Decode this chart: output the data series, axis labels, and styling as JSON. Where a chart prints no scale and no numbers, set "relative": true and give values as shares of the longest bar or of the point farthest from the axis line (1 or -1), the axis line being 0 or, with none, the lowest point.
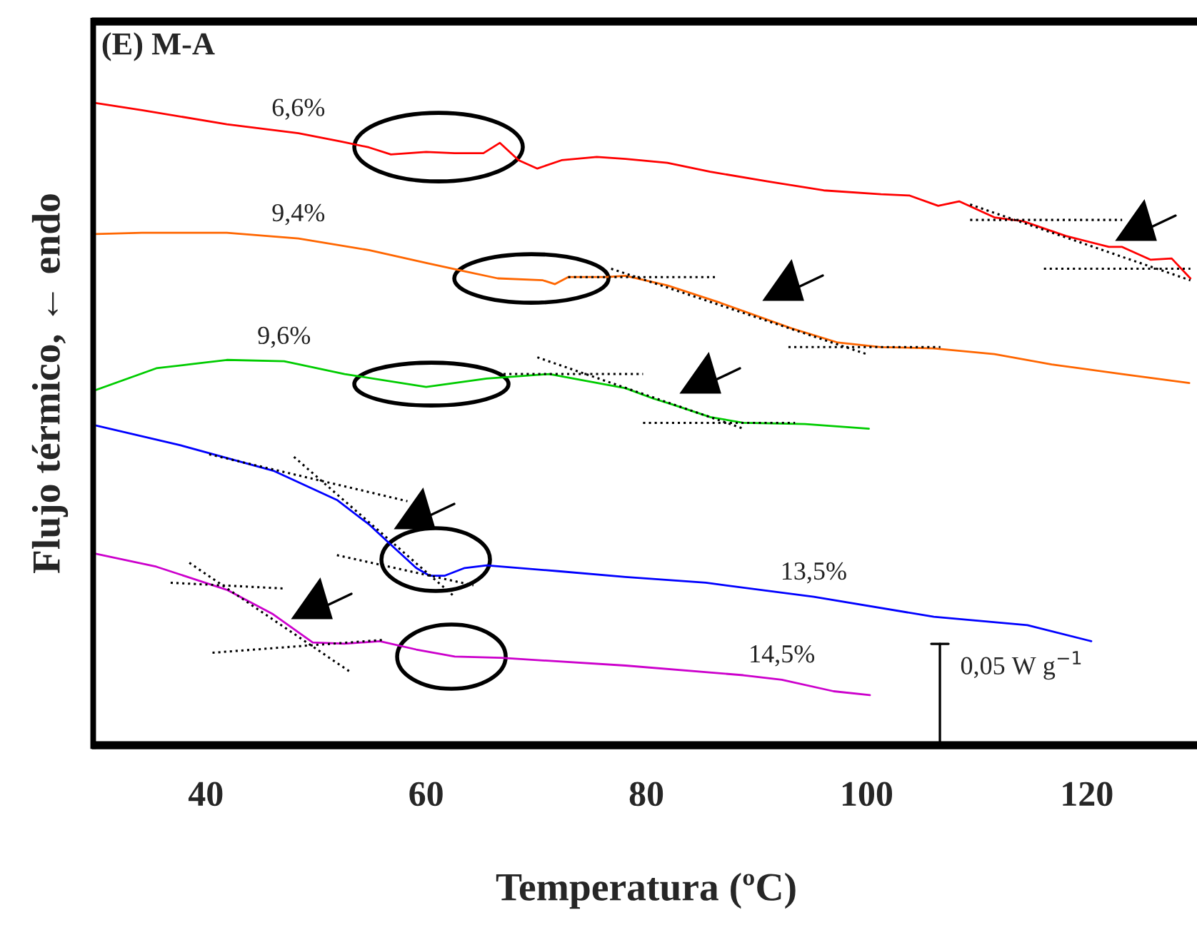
{
  "chart_data": {
    "type": "line",
    "relative": true,
    "xlabel": "Temperatura (ºC)",
    "ylabel": "Flujo térmico, ← endo",
    "xlim": [
      30,
      130
    ],
    "xticks": [
      40,
      60,
      80,
      100,
      120
    ],
    "grid": false,
    "legend": false,
    "marker": "none",
    "line_style": "solid",
    "annotations": [
      "(E) M-A",
      "0,05 W g$^{−1}$"
    ],
    "series": [
      {
        "name": "6,6%",
        "color": "#ff0000",
        "x": [
          30,
          34.2,
          41.9,
          48.4,
          52.3,
          54.8,
          56.8,
          60.0,
          62.6,
          65.2,
          66.7,
          68.4,
          70.1,
          72.3,
          75.5,
          78.1,
          81.9,
          85.8,
          91.0,
          96.1,
          101.3,
          103.9,
          106.5,
          108.4,
          111.6,
          114.2,
          118.1,
          122.0,
          123.2,
          125.8,
          127.7,
          129.4
        ],
        "values": [
          1.0,
          0.989,
          0.967,
          0.953,
          0.94,
          0.931,
          0.92,
          0.924,
          0.922,
          0.922,
          0.938,
          0.911,
          0.898,
          0.911,
          0.916,
          0.913,
          0.907,
          0.893,
          0.878,
          0.864,
          0.858,
          0.856,
          0.84,
          0.847,
          0.822,
          0.816,
          0.793,
          0.776,
          0.776,
          0.756,
          0.758,
          0.727
        ]
      },
      {
        "name": "9,4%",
        "color": "#ff6600",
        "x": [
          30,
          34.2,
          41.9,
          48.4,
          54.8,
          60.0,
          63.5,
          66.5,
          70.6,
          71.7,
          72.9,
          76.4,
          78.1,
          81.9,
          86.7,
          93.2,
          97.4,
          101.3,
          106.1,
          111.6,
          116.8,
          123.2,
          129.3
        ],
        "values": [
          0.796,
          0.798,
          0.798,
          0.789,
          0.771,
          0.751,
          0.738,
          0.727,
          0.724,
          0.718,
          0.729,
          0.729,
          0.731,
          0.716,
          0.689,
          0.649,
          0.627,
          0.62,
          0.618,
          0.609,
          0.593,
          0.578,
          0.564
        ]
      },
      {
        "name": "9,6%",
        "color": "#00cc00",
        "x": [
          30,
          35.5,
          41.9,
          47.1,
          52.6,
          60.0,
          65.5,
          71.2,
          74.6,
          78.1,
          80.6,
          82.3,
          85.8,
          88.8,
          94.4,
          100.2
        ],
        "values": [
          0.553,
          0.587,
          0.6,
          0.598,
          0.578,
          0.558,
          0.571,
          0.578,
          0.567,
          0.556,
          0.54,
          0.531,
          0.511,
          0.502,
          0.5,
          0.493
        ]
      },
      {
        "name": "13,5%",
        "color": "#0000ff",
        "x": [
          30,
          37.7,
          46.2,
          51.9,
          54.8,
          57.0,
          59.1,
          60.3,
          61.7,
          63.5,
          65.5,
          72.0,
          78.1,
          85.4,
          95.2,
          106.1,
          114.6,
          120.4
        ],
        "values": [
          0.498,
          0.467,
          0.427,
          0.382,
          0.344,
          0.309,
          0.276,
          0.264,
          0.264,
          0.276,
          0.28,
          0.271,
          0.262,
          0.253,
          0.231,
          0.2,
          0.187,
          0.162
        ]
      },
      {
        "name": "14,5%",
        "color": "#cc00cc",
        "x": [
          30,
          35.5,
          41.9,
          46.1,
          49.7,
          52.6,
          55.8,
          59.1,
          62.6,
          66.8,
          78.1,
          88.8,
          92.3,
          97.0,
          100.3
        ],
        "values": [
          0.298,
          0.278,
          0.242,
          0.204,
          0.16,
          0.158,
          0.162,
          0.149,
          0.138,
          0.136,
          0.124,
          0.109,
          0.102,
          0.084,
          0.078
        ]
      },
      {
        "color": "#000000",
        "line_style": "dotted",
        "x": [
          109.4,
          123.2
        ],
        "values": [
          0.818,
          0.818
        ]
      },
      {
        "color": "#000000",
        "line_style": "dotted",
        "x": [
          116.1,
          129.4
        ],
        "values": [
          0.742,
          0.742
        ]
      },
      {
        "color": "#000000",
        "line_style": "dotted",
        "x": [
          109.4,
          129.4
        ],
        "values": [
          0.842,
          0.724
        ]
      },
      {
        "color": "#000000",
        "line_style": "dotted",
        "x": [
          72.9,
          86.5
        ],
        "values": [
          0.729,
          0.729
        ]
      },
      {
        "color": "#000000",
        "line_style": "dotted",
        "x": [
          76.8,
          100.0
        ],
        "values": [
          0.742,
          0.609
        ]
      },
      {
        "color": "#000000",
        "line_style": "dotted",
        "x": [
          92.9,
          106.7
        ],
        "values": [
          0.62,
          0.62
        ]
      },
      {
        "color": "#000000",
        "line_style": "dotted",
        "x": [
          66.5,
          79.7
        ],
        "values": [
          0.578,
          0.578
        ]
      },
      {
        "color": "#000000",
        "line_style": "dotted",
        "x": [
          70.1,
          88.8
        ],
        "values": [
          0.604,
          0.493
        ]
      },
      {
        "color": "#000000",
        "line_style": "dotted",
        "x": [
          79.7,
          93.5
        ],
        "values": [
          0.502,
          0.502
        ]
      },
      {
        "color": "#000000",
        "line_style": "dotted",
        "x": [
          40.3,
          58.3
        ],
        "values": [
          0.453,
          0.38
        ]
      },
      {
        "color": "#000000",
        "line_style": "dotted",
        "x": [
          48.0,
          62.6
        ],
        "values": [
          0.449,
          0.231
        ]
      },
      {
        "color": "#000000",
        "line_style": "dotted",
        "x": [
          51.9,
          64.3
        ],
        "values": [
          0.296,
          0.249
        ]
      },
      {
        "color": "#000000",
        "line_style": "dotted",
        "x": [
          36.8,
          47.1
        ],
        "values": [
          0.253,
          0.244
        ]
      },
      {
        "color": "#000000",
        "line_style": "dotted",
        "x": [
          38.5,
          53.2
        ],
        "values": [
          0.284,
          0.113
        ]
      },
      {
        "color": "#000000",
        "line_style": "dotted",
        "x": [
          40.6,
          56.1
        ],
        "values": [
          0.144,
          0.164
        ]
      }
    ]
  }
}
